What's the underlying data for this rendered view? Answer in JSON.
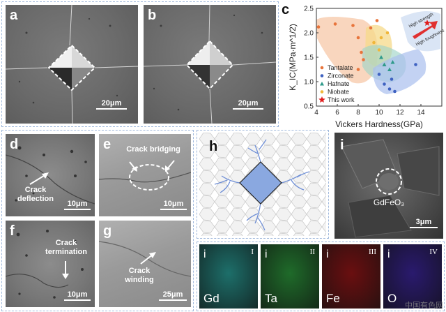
{
  "panels": {
    "a": {
      "label": "a",
      "scale": "20μm"
    },
    "b": {
      "label": "b",
      "scale": "20μm"
    },
    "c": {
      "label": "c"
    },
    "d": {
      "label": "d",
      "annotation": [
        "Crack",
        "deflection"
      ],
      "scale": "10μm"
    },
    "e": {
      "label": "e",
      "annotation": [
        "Crack bridging"
      ],
      "scale": "10μm"
    },
    "f": {
      "label": "f",
      "annotation": [
        "Crack",
        "termination"
      ],
      "scale": "10μm"
    },
    "g": {
      "label": "g",
      "annotation": [
        "Crack",
        "winding"
      ],
      "scale": "25μm"
    },
    "h": {
      "label": "h"
    },
    "i": {
      "label": "i",
      "annotation": "GdFeO₃",
      "scale": "3μm"
    }
  },
  "eds_maps": [
    {
      "index": "i",
      "roman": "I",
      "element": "Gd",
      "color": "#1d6f6a"
    },
    {
      "index": "i",
      "roman": "II",
      "element": "Ta",
      "color": "#1f6b2a"
    },
    {
      "index": "i",
      "roman": "III",
      "element": "Fe",
      "color": "#6a0f10"
    },
    {
      "index": "i",
      "roman": "IV",
      "element": "O",
      "color": "#2a1a6e"
    }
  ],
  "watermark": "中国有色网",
  "chart_data": {
    "type": "scatter",
    "xlabel": "Vickers Hardness(GPa)",
    "ylabel": "K_IC(MPa·m^1/2)",
    "xlim": [
      4,
      16
    ],
    "ylim": [
      0.5,
      2.5
    ],
    "xticks": [
      4,
      6,
      8,
      10,
      12,
      14
    ],
    "yticks": [
      0.5,
      1.0,
      1.5,
      2.0,
      2.5
    ],
    "legend_position": "left",
    "annotations": [
      "High strength",
      "High toughness"
    ],
    "series": [
      {
        "name": "Tantalate",
        "marker": "circle",
        "color": "#e8743b",
        "points": [
          [
            4.2,
            2.12
          ],
          [
            5.8,
            2.18
          ],
          [
            7.5,
            2.15
          ],
          [
            8.0,
            1.9
          ],
          [
            8.3,
            1.6
          ],
          [
            8.5,
            1.45
          ],
          [
            8.0,
            1.25
          ],
          [
            9.2,
            2.1
          ],
          [
            9.8,
            2.25
          ]
        ]
      },
      {
        "name": "Zirconate",
        "marker": "circle",
        "color": "#3f62c1",
        "points": [
          [
            10.0,
            1.15
          ],
          [
            10.5,
            0.95
          ],
          [
            11.0,
            0.85
          ],
          [
            11.5,
            0.8
          ],
          [
            13.5,
            1.35
          ],
          [
            11.2,
            1.05
          ]
        ]
      },
      {
        "name": "Hafnate",
        "marker": "triangle",
        "color": "#2e9a8a",
        "points": [
          [
            10.2,
            1.5
          ],
          [
            10.5,
            1.35
          ],
          [
            11.0,
            1.25
          ],
          [
            11.3,
            1.4
          ]
        ]
      },
      {
        "name": "Niobate",
        "marker": "circle",
        "color": "#f0b73a",
        "points": [
          [
            9.5,
            1.8
          ],
          [
            10.0,
            1.65
          ],
          [
            10.2,
            1.9
          ],
          [
            10.8,
            2.0
          ]
        ]
      },
      {
        "name": "This work",
        "marker": "star",
        "color": "#e01b1b",
        "points": [
          [
            14.6,
            2.2
          ]
        ]
      }
    ]
  }
}
